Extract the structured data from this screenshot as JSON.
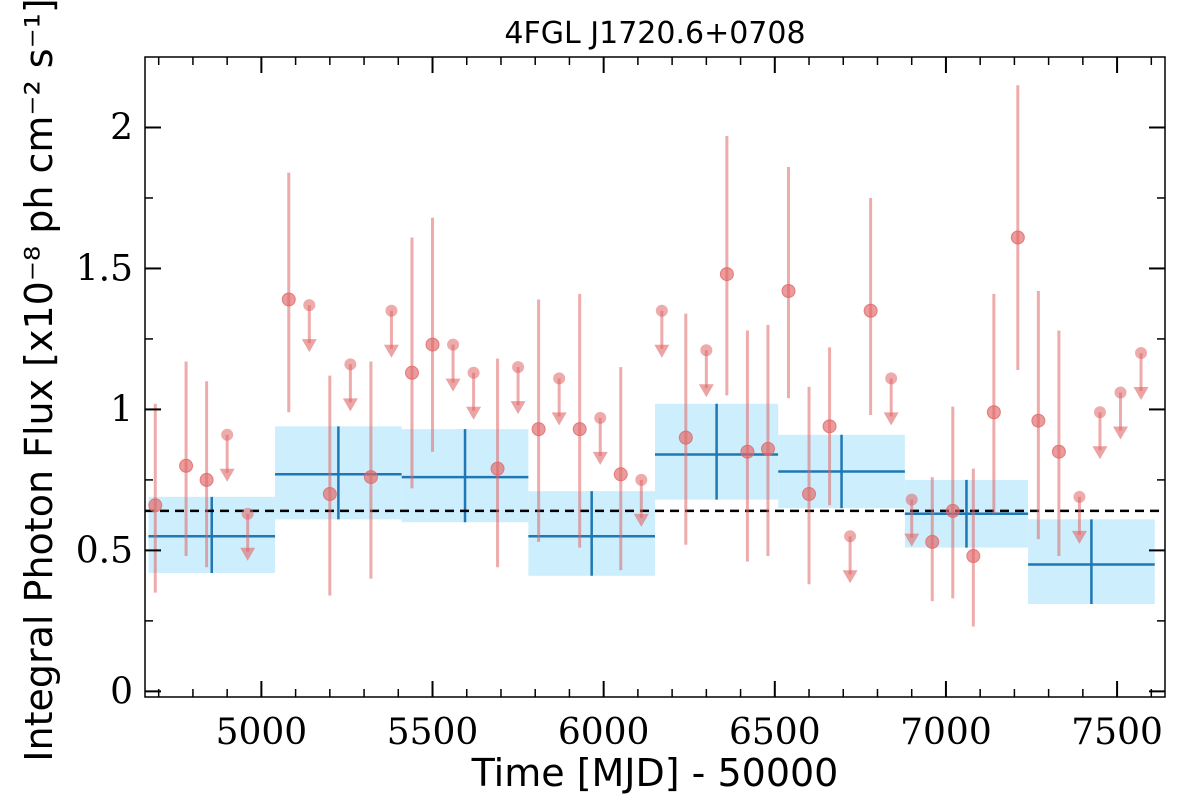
{
  "chart_data": {
    "type": "scatter",
    "title": "4FGL J1720.6+0708",
    "xlabel": "Time [MJD] - 50000",
    "ylabel": "Integral Photon Flux [x10⁻⁸ ph cm⁻² s⁻¹]",
    "xlim": [
      4660,
      7640
    ],
    "ylim": [
      -0.02,
      2.25
    ],
    "x_ticks": [
      5000,
      5500,
      6000,
      6500,
      7000,
      7500
    ],
    "x_tick_labels": [
      "5000",
      "5500",
      "6000",
      "6500",
      "7000",
      "7500"
    ],
    "y_ticks": [
      0,
      0.5,
      1,
      1.5,
      2
    ],
    "y_tick_labels": [
      "0",
      "0.5",
      "1",
      "1.5",
      "2"
    ],
    "grid": false,
    "colors": {
      "monthly": "#e06666",
      "binned_line": "#1f77b4",
      "binned_fill": "#cdeefc",
      "mean_line": "#000000"
    },
    "mean_flux": 0.64,
    "series": [
      {
        "kind": "points",
        "points": [
          {
            "x": 4690,
            "y": 0.66,
            "lo": 0.35,
            "hi": 1.02
          },
          {
            "x": 4780,
            "y": 0.8,
            "lo": 0.48,
            "hi": 1.17
          },
          {
            "x": 4840,
            "y": 0.75,
            "lo": 0.44,
            "hi": 1.1
          },
          {
            "x": 5080,
            "y": 1.39,
            "lo": 0.99,
            "hi": 1.84
          },
          {
            "x": 5200,
            "y": 0.7,
            "lo": 0.34,
            "hi": 1.12
          },
          {
            "x": 5320,
            "y": 0.76,
            "lo": 0.4,
            "hi": 1.17
          },
          {
            "x": 5440,
            "y": 1.13,
            "lo": 0.72,
            "hi": 1.61
          },
          {
            "x": 5500,
            "y": 1.23,
            "lo": 0.85,
            "hi": 1.68
          },
          {
            "x": 5690,
            "y": 0.79,
            "lo": 0.44,
            "hi": 1.18
          },
          {
            "x": 5810,
            "y": 0.93,
            "lo": 0.53,
            "hi": 1.39
          },
          {
            "x": 5930,
            "y": 0.93,
            "lo": 0.51,
            "hi": 1.41
          },
          {
            "x": 6050,
            "y": 0.77,
            "lo": 0.43,
            "hi": 1.15
          },
          {
            "x": 6240,
            "y": 0.9,
            "lo": 0.52,
            "hi": 1.34
          },
          {
            "x": 6360,
            "y": 1.48,
            "lo": 1.05,
            "hi": 1.97
          },
          {
            "x": 6420,
            "y": 0.85,
            "lo": 0.46,
            "hi": 1.28
          },
          {
            "x": 6480,
            "y": 0.86,
            "lo": 0.48,
            "hi": 1.3
          },
          {
            "x": 6540,
            "y": 1.42,
            "lo": 1.04,
            "hi": 1.86
          },
          {
            "x": 6600,
            "y": 0.7,
            "lo": 0.38,
            "hi": 1.08
          },
          {
            "x": 6660,
            "y": 0.94,
            "lo": 0.66,
            "hi": 1.22
          },
          {
            "x": 6780,
            "y": 1.35,
            "lo": 0.98,
            "hi": 1.75
          },
          {
            "x": 6960,
            "y": 0.53,
            "lo": 0.32,
            "hi": 0.76
          },
          {
            "x": 7020,
            "y": 0.64,
            "lo": 0.33,
            "hi": 1.01
          },
          {
            "x": 7080,
            "y": 0.48,
            "lo": 0.23,
            "hi": 0.79
          },
          {
            "x": 7140,
            "y": 0.99,
            "lo": 0.63,
            "hi": 1.41
          },
          {
            "x": 7210,
            "y": 1.61,
            "lo": 1.14,
            "hi": 2.15
          },
          {
            "x": 7270,
            "y": 0.96,
            "lo": 0.54,
            "hi": 1.42
          },
          {
            "x": 7330,
            "y": 0.85,
            "lo": 0.48,
            "hi": 1.28
          }
        ]
      },
      {
        "kind": "upper_limits",
        "points": [
          {
            "x": 4900,
            "y": 0.91
          },
          {
            "x": 4960,
            "y": 0.63
          },
          {
            "x": 5140,
            "y": 1.37
          },
          {
            "x": 5260,
            "y": 1.16
          },
          {
            "x": 5380,
            "y": 1.35
          },
          {
            "x": 5560,
            "y": 1.23
          },
          {
            "x": 5620,
            "y": 1.13
          },
          {
            "x": 5750,
            "y": 1.15
          },
          {
            "x": 5870,
            "y": 1.11
          },
          {
            "x": 5990,
            "y": 0.97
          },
          {
            "x": 6110,
            "y": 0.75
          },
          {
            "x": 6170,
            "y": 1.35
          },
          {
            "x": 6300,
            "y": 1.21
          },
          {
            "x": 6720,
            "y": 0.55
          },
          {
            "x": 6840,
            "y": 1.11
          },
          {
            "x": 6900,
            "y": 0.68
          },
          {
            "x": 7390,
            "y": 0.69
          },
          {
            "x": 7450,
            "y": 0.99
          },
          {
            "x": 7510,
            "y": 1.06
          },
          {
            "x": 7570,
            "y": 1.2
          }
        ]
      },
      {
        "kind": "binned",
        "bins": [
          {
            "x0": 4670,
            "x1": 5040,
            "y": 0.55,
            "lo": 0.42,
            "hi": 0.69
          },
          {
            "x0": 5040,
            "x1": 5410,
            "y": 0.77,
            "lo": 0.61,
            "hi": 0.94
          },
          {
            "x0": 5410,
            "x1": 5780,
            "y": 0.76,
            "lo": 0.6,
            "hi": 0.93
          },
          {
            "x0": 5780,
            "x1": 6150,
            "y": 0.55,
            "lo": 0.41,
            "hi": 0.71
          },
          {
            "x0": 6150,
            "x1": 6510,
            "y": 0.84,
            "lo": 0.68,
            "hi": 1.02
          },
          {
            "x0": 6510,
            "x1": 6880,
            "y": 0.78,
            "lo": 0.65,
            "hi": 0.91
          },
          {
            "x0": 6880,
            "x1": 7240,
            "y": 0.63,
            "lo": 0.51,
            "hi": 0.75
          },
          {
            "x0": 7240,
            "x1": 7610,
            "y": 0.45,
            "lo": 0.31,
            "hi": 0.61
          }
        ]
      }
    ]
  }
}
